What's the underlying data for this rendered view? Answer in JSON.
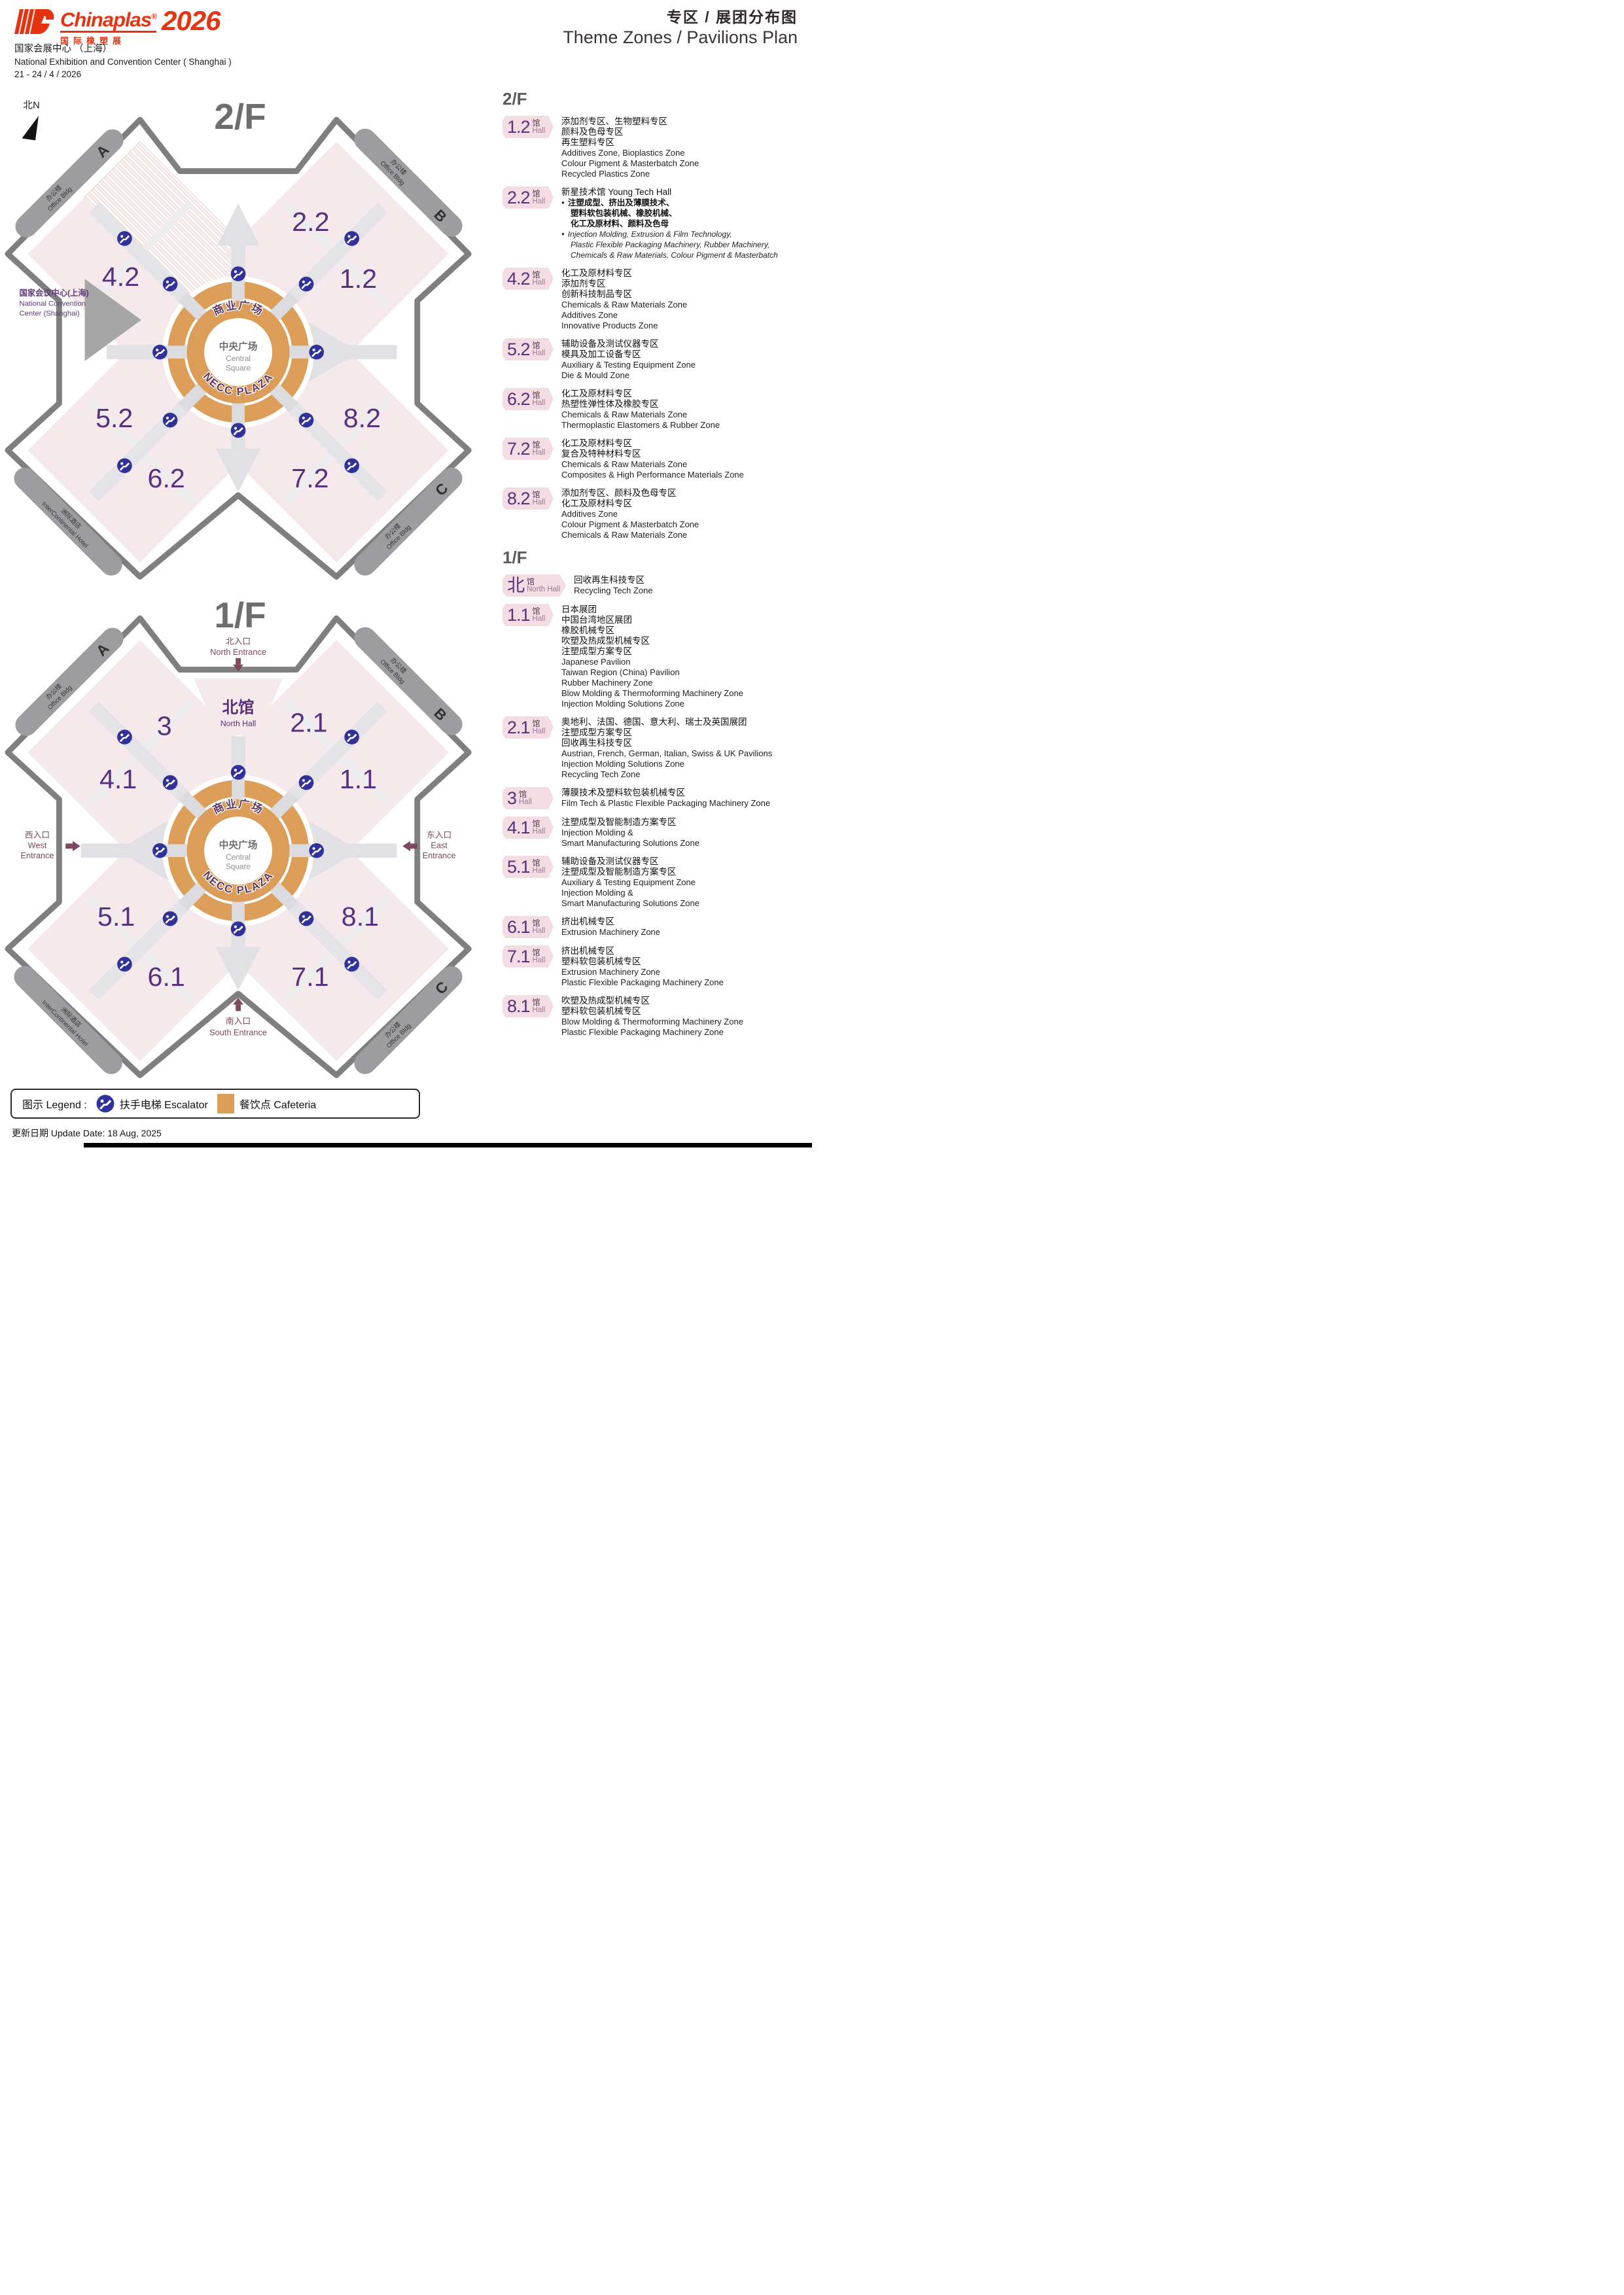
{
  "header": {
    "brand": "Chinaplas",
    "brand_reg": "®",
    "brand_cn": "国际橡塑展",
    "year": "2026",
    "venue_cn": "国家会展中心 （上海）",
    "venue_en": "National Exhibition and Convention Center ( Shanghai )",
    "dates": "21 - 24 / 4 / 2026",
    "title_cn": "专区 / 展团分布图",
    "title_en": "Theme Zones / Pavilions Plan"
  },
  "compass": "北N",
  "buildings": {
    "office_cn": "办公楼",
    "office_en": "Office Bldg",
    "a": "A",
    "b": "B",
    "c": "C",
    "hotel_cn": "洲际酒店",
    "hotel_en": "InterContinental Hotel"
  },
  "ncc": {
    "cn": "国家会议中心(上海)",
    "en1": "National Convention",
    "en2": "Center (Shanghai)"
  },
  "plaza": {
    "top_cn": "商业广场",
    "center_cn": "中央广场",
    "center_en1": "Central",
    "center_en2": "Square",
    "bottom_en": "NECC PLAZA"
  },
  "floor2": {
    "title": "2/F",
    "list_title": "2/F",
    "halls": [
      "4.2",
      "2.2",
      "1.2",
      "5.2",
      "8.2",
      "6.2",
      "7.2"
    ],
    "entries": [
      {
        "num": "1.2",
        "hall_cn": "馆",
        "hall_en": "Hall",
        "lines": [
          {
            "t": "添加剂专区、生物塑料专区",
            "s": "cn"
          },
          {
            "t": "颜料及色母专区",
            "s": "cn"
          },
          {
            "t": "再生塑料专区",
            "s": "cn"
          },
          {
            "t": "Additives Zone, Bioplastics Zone",
            "s": "en"
          },
          {
            "t": "Colour Pigment & Masterbatch Zone",
            "s": "en"
          },
          {
            "t": "Recycled Plastics Zone",
            "s": "en"
          }
        ]
      },
      {
        "num": "2.2",
        "hall_cn": "馆",
        "hall_en": "Hall",
        "lines": [
          {
            "t": "新星技术馆 Young Tech Hall",
            "s": "cn"
          },
          {
            "t": "注塑成型、挤出及薄膜技术、",
            "s": "cnb"
          },
          {
            "t": "塑料软包装机械、橡胶机械、",
            "s": "cnb2"
          },
          {
            "t": "化工及原材料、颜料及色母",
            "s": "cnb2"
          },
          {
            "t": "Injection Molding, Extrusion & Film Technology,",
            "s": "enb"
          },
          {
            "t": "Plastic Flexible Packaging Machinery, Rubber Machinery,",
            "s": "enb2"
          },
          {
            "t": "Chemicals & Raw Materials, Colour Pigment & Masterbatch",
            "s": "enb2"
          }
        ]
      },
      {
        "num": "4.2",
        "hall_cn": "馆",
        "hall_en": "Hall",
        "lines": [
          {
            "t": "化工及原材料专区",
            "s": "cn"
          },
          {
            "t": "添加剂专区",
            "s": "cn"
          },
          {
            "t": "创新科技制品专区",
            "s": "cn"
          },
          {
            "t": "Chemicals & Raw Materials Zone",
            "s": "en"
          },
          {
            "t": "Additives Zone",
            "s": "en"
          },
          {
            "t": "Innovative Products Zone",
            "s": "en"
          }
        ]
      },
      {
        "num": "5.2",
        "hall_cn": "馆",
        "hall_en": "Hall",
        "lines": [
          {
            "t": "辅助设备及测试仪器专区",
            "s": "cn"
          },
          {
            "t": "模具及加工设备专区",
            "s": "cn"
          },
          {
            "t": "Auxiliary & Testing Equipment Zone",
            "s": "en"
          },
          {
            "t": "Die & Mould Zone",
            "s": "en"
          }
        ]
      },
      {
        "num": "6.2",
        "hall_cn": "馆",
        "hall_en": "Hall",
        "lines": [
          {
            "t": "化工及原材料专区",
            "s": "cn"
          },
          {
            "t": "热塑性弹性体及橡胶专区",
            "s": "cn"
          },
          {
            "t": "Chemicals & Raw Materials Zone",
            "s": "en"
          },
          {
            "t": "Thermoplastic Elastomers & Rubber Zone",
            "s": "en"
          }
        ]
      },
      {
        "num": "7.2",
        "hall_cn": "馆",
        "hall_en": "Hall",
        "lines": [
          {
            "t": "化工及原材料专区",
            "s": "cn"
          },
          {
            "t": "复合及特种材料专区",
            "s": "cn"
          },
          {
            "t": "Chemicals & Raw Materials Zone",
            "s": "en"
          },
          {
            "t": "Composites & High Performance Materials Zone",
            "s": "en"
          }
        ]
      },
      {
        "num": "8.2",
        "hall_cn": "馆",
        "hall_en": "Hall",
        "lines": [
          {
            "t": "添加剂专区、颜料及色母专区",
            "s": "cn"
          },
          {
            "t": "化工及原材料专区",
            "s": "cn"
          },
          {
            "t": "Additives Zone",
            "s": "en"
          },
          {
            "t": "Colour Pigment & Masterbatch Zone",
            "s": "en"
          },
          {
            "t": "Chemicals & Raw Materials Zone",
            "s": "en"
          }
        ]
      }
    ]
  },
  "floor1": {
    "title": "1/F",
    "list_title": "1/F",
    "halls": [
      "3",
      "2.1",
      "4.1",
      "1.1",
      "5.1",
      "8.1",
      "6.1",
      "7.1"
    ],
    "north_hall": {
      "cn": "北馆",
      "en": "North Hall"
    },
    "entrances": {
      "north_cn": "北入口",
      "north_en": "North Entrance",
      "west_cn": "西入口",
      "west_en1": "West",
      "west_en2": "Entrance",
      "east_cn": "东入口",
      "east_en1": "East",
      "east_en2": "Entrance",
      "south_cn": "南入口",
      "south_en": "South Entrance"
    },
    "entries": [
      {
        "num": "北",
        "hall_cn": "馆",
        "hall_en": "North Hall",
        "lines": [
          {
            "t": "回收再生科技专区",
            "s": "cn"
          },
          {
            "t": "Recycling Tech Zone",
            "s": "en"
          }
        ]
      },
      {
        "num": "1.1",
        "hall_cn": "馆",
        "hall_en": "Hall",
        "lines": [
          {
            "t": "日本展团",
            "s": "cn"
          },
          {
            "t": "中国台湾地区展团",
            "s": "cn"
          },
          {
            "t": "橡胶机械专区",
            "s": "cn"
          },
          {
            "t": "吹塑及热成型机械专区",
            "s": "cn"
          },
          {
            "t": "注塑成型方案专区",
            "s": "cn"
          },
          {
            "t": "Japanese Pavilion",
            "s": "en"
          },
          {
            "t": "Taiwan Region (China) Pavilion",
            "s": "en"
          },
          {
            "t": "Rubber Machinery Zone",
            "s": "en"
          },
          {
            "t": "Blow Molding & Thermoforming Machinery Zone",
            "s": "en"
          },
          {
            "t": "Injection Molding Solutions Zone",
            "s": "en"
          }
        ]
      },
      {
        "num": "2.1",
        "hall_cn": "馆",
        "hall_en": "Hall",
        "lines": [
          {
            "t": "奥地利、法国、德国、意大利、瑞士及英国展团",
            "s": "cn"
          },
          {
            "t": "注塑成型方案专区",
            "s": "cn"
          },
          {
            "t": "回收再生科技专区",
            "s": "cn"
          },
          {
            "t": "Austrian, French, German, Italian, Swiss & UK Pavilions",
            "s": "en"
          },
          {
            "t": "Injection Molding Solutions Zone",
            "s": "en"
          },
          {
            "t": "Recycling Tech Zone",
            "s": "en"
          }
        ]
      },
      {
        "num": "3",
        "hall_cn": "馆",
        "hall_en": "Hall",
        "lines": [
          {
            "t": "薄膜技术及塑料软包装机械专区",
            "s": "cn"
          },
          {
            "t": "Film Tech & Plastic Flexible Packaging Machinery Zone",
            "s": "en"
          }
        ]
      },
      {
        "num": "4.1",
        "hall_cn": "馆",
        "hall_en": "Hall",
        "lines": [
          {
            "t": "注塑成型及智能制造方案专区",
            "s": "cn"
          },
          {
            "t": "Injection Molding &",
            "s": "en"
          },
          {
            "t": "Smart Manufacturing Solutions Zone",
            "s": "en"
          }
        ]
      },
      {
        "num": "5.1",
        "hall_cn": "馆",
        "hall_en": "Hall",
        "lines": [
          {
            "t": "辅助设备及测试仪器专区",
            "s": "cn"
          },
          {
            "t": "注塑成型及智能制造方案专区",
            "s": "cn"
          },
          {
            "t": "Auxiliary & Testing Equipment Zone",
            "s": "en"
          },
          {
            "t": "Injection Molding &",
            "s": "en"
          },
          {
            "t": "Smart Manufacturing Solutions Zone",
            "s": "en"
          }
        ]
      },
      {
        "num": "6.1",
        "hall_cn": "馆",
        "hall_en": "Hall",
        "lines": [
          {
            "t": "挤出机械专区",
            "s": "cn"
          },
          {
            "t": "Extrusion Machinery Zone",
            "s": "en"
          }
        ]
      },
      {
        "num": "7.1",
        "hall_cn": "馆",
        "hall_en": "Hall",
        "lines": [
          {
            "t": "挤出机械专区",
            "s": "cn"
          },
          {
            "t": "塑料软包装机械专区",
            "s": "cn"
          },
          {
            "t": "Extrusion Machinery Zone",
            "s": "en"
          },
          {
            "t": "Plastic Flexible Packaging Machinery Zone",
            "s": "en"
          }
        ]
      },
      {
        "num": "8.1",
        "hall_cn": "馆",
        "hall_en": "Hall",
        "lines": [
          {
            "t": "吹塑及热成型机械专区",
            "s": "cn"
          },
          {
            "t": "塑料软包装机械专区",
            "s": "cn"
          },
          {
            "t": "Blow Molding & Thermoforming Machinery Zone",
            "s": "en"
          },
          {
            "t": "Plastic Flexible Packaging Machinery Zone",
            "s": "en"
          }
        ]
      }
    ]
  },
  "legend": {
    "label": "图示 Legend :",
    "escalator": "扶手电梯 Escalator",
    "cafeteria": "餐饮点 Cafeteria"
  },
  "update_date": "更新日期 Update Date: 18 Aug, 2025",
  "colors": {
    "brand_red": "#e63312",
    "hall_pink": "#f6e9eb",
    "badge_pink": "#f3dde3",
    "hall_number_purple": "#57307f",
    "cafeteria_orange": "#dd9e5a",
    "escalator_blue": "#31319b",
    "entrance_plum": "#7c4960",
    "outline_gray": "#7f7f82",
    "building_gray": "#9d9da0"
  }
}
